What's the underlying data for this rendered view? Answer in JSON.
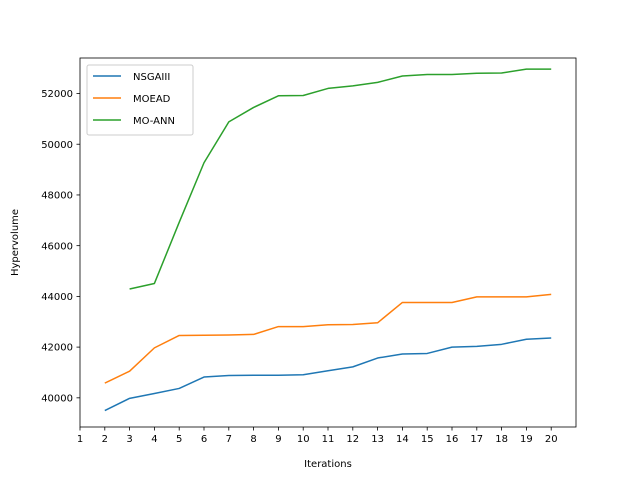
{
  "chart_data": {
    "type": "line",
    "title": "",
    "xlabel": "Iterations",
    "ylabel": "Hypervolume",
    "xlim": [
      1,
      21
    ],
    "ylim": [
      38850,
      53400
    ],
    "x_ticks": [
      1,
      2,
      3,
      4,
      5,
      6,
      7,
      8,
      9,
      10,
      11,
      12,
      13,
      14,
      15,
      16,
      17,
      18,
      19,
      20
    ],
    "y_ticks": [
      40000,
      42000,
      44000,
      46000,
      48000,
      50000,
      52000
    ],
    "grid": false,
    "legend_position": "top-left",
    "series": [
      {
        "name": "NSGAIII",
        "color": "#1f77b4",
        "x": [
          2,
          3,
          4,
          5,
          6,
          7,
          8,
          9,
          10,
          11,
          12,
          13,
          14,
          15,
          16,
          17,
          18,
          19,
          20
        ],
        "values": [
          39500,
          39980,
          40170,
          40370,
          40820,
          40880,
          40890,
          40890,
          40910,
          41070,
          41220,
          41570,
          41730,
          41750,
          42000,
          42030,
          42110,
          42310,
          42360
        ]
      },
      {
        "name": "MOEAD",
        "color": "#ff7f0e",
        "x": [
          2,
          3,
          4,
          5,
          6,
          7,
          8,
          9,
          10,
          11,
          12,
          13,
          14,
          15,
          16,
          17,
          18,
          19,
          20
        ],
        "values": [
          40580,
          41050,
          41970,
          42460,
          42470,
          42480,
          42500,
          42810,
          42810,
          42880,
          42890,
          42960,
          43760,
          43760,
          43760,
          43980,
          43980,
          43980,
          44080
        ]
      },
      {
        "name": "MO-ANN",
        "color": "#2ca02c",
        "x": [
          3,
          4,
          5,
          6,
          7,
          8,
          9,
          10,
          11,
          12,
          13,
          14,
          15,
          16,
          17,
          18,
          19,
          20
        ],
        "values": [
          44290,
          44510,
          46920,
          49270,
          50880,
          51450,
          51910,
          51920,
          52200,
          52300,
          52440,
          52690,
          52750,
          52750,
          52800,
          52810,
          52960,
          52960
        ]
      }
    ]
  }
}
